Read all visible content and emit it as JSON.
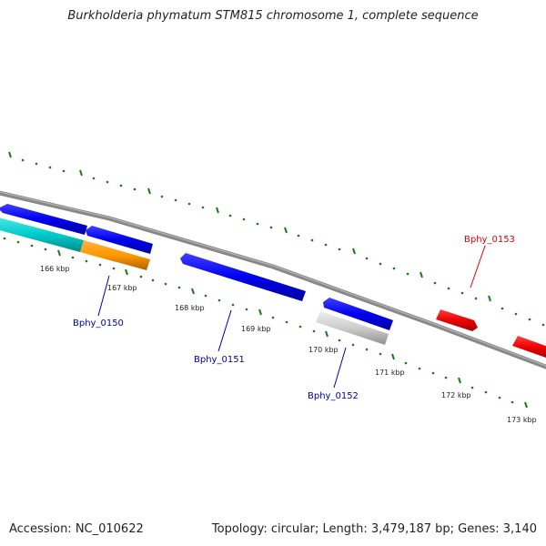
{
  "title": "Burkholderia phymatum STM815 chromosome 1, complete sequence",
  "accession": "Accession: NC_010622",
  "topology": "Topology: circular; Length: 3,479,187 bp; Genes: 3,140",
  "colors": {
    "backbone": "#888888",
    "tick": "#1a7a1a",
    "forward_gene": "#0000ee",
    "label_blue": "#0000aa",
    "label_red": "#dd0000"
  },
  "ticks": {
    "labels": [
      "166 kbp",
      "167 kbp",
      "168 kbp",
      "169 kbp",
      "170 kbp",
      "171 kbp",
      "172 kbp",
      "173 kbp"
    ]
  },
  "genes": {
    "labels": [
      {
        "text": "Bphy_0150",
        "color": "#0000aa"
      },
      {
        "text": "Bphy_0151",
        "color": "#0000aa"
      },
      {
        "text": "Bphy_0152",
        "color": "#0000aa"
      },
      {
        "text": "Bphy_0153",
        "color": "#dd0000"
      }
    ]
  }
}
